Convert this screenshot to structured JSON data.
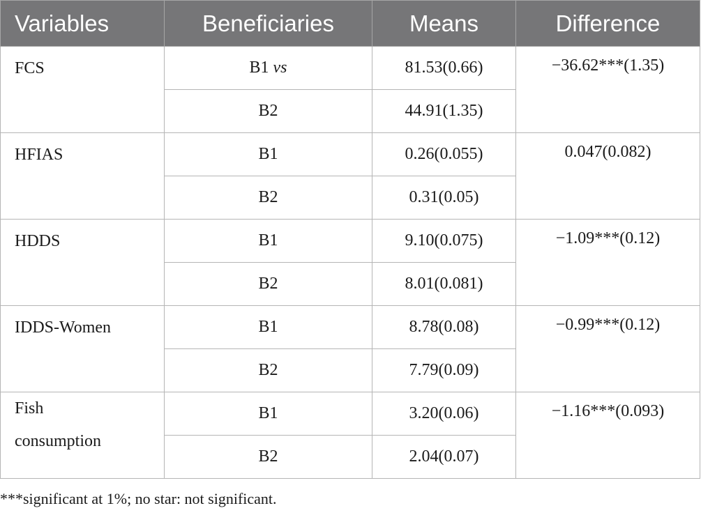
{
  "table": {
    "headers": [
      "Variables",
      "Beneficiaries",
      "Means",
      "Difference"
    ],
    "groups": [
      {
        "variable": "FCS",
        "difference": "−36.62***(1.35)",
        "rows": [
          {
            "beneficiary": "B1",
            "suffix": "vs",
            "mean": "81.53(0.66)"
          },
          {
            "beneficiary": "B2",
            "suffix": "",
            "mean": "44.91(1.35)"
          }
        ]
      },
      {
        "variable": "HFIAS",
        "difference": "0.047(0.082)",
        "rows": [
          {
            "beneficiary": "B1",
            "suffix": "",
            "mean": "0.26(0.055)"
          },
          {
            "beneficiary": "B2",
            "suffix": "",
            "mean": "0.31(0.05)"
          }
        ]
      },
      {
        "variable": "HDDS",
        "difference": "−1.09***(0.12)",
        "rows": [
          {
            "beneficiary": "B1",
            "suffix": "",
            "mean": "9.10(0.075)"
          },
          {
            "beneficiary": "B2",
            "suffix": "",
            "mean": "8.01(0.081)"
          }
        ]
      },
      {
        "variable": "IDDS-Women",
        "difference": "−0.99***(0.12)",
        "rows": [
          {
            "beneficiary": "B1",
            "suffix": "",
            "mean": "8.78(0.08)"
          },
          {
            "beneficiary": "B2",
            "suffix": "",
            "mean": "7.79(0.09)"
          }
        ]
      },
      {
        "variable": "Fish consumption",
        "difference": "−1.16***(0.093)",
        "rows": [
          {
            "beneficiary": "B1",
            "suffix": "",
            "mean": "3.20(0.06)"
          },
          {
            "beneficiary": "B2",
            "suffix": "",
            "mean": "2.04(0.07)"
          }
        ]
      }
    ]
  },
  "footnote": "***significant at 1%; no star: not significant.",
  "colors": {
    "header_bg": "#767678",
    "header_text": "#ffffff",
    "border": "#b5b5b5"
  }
}
